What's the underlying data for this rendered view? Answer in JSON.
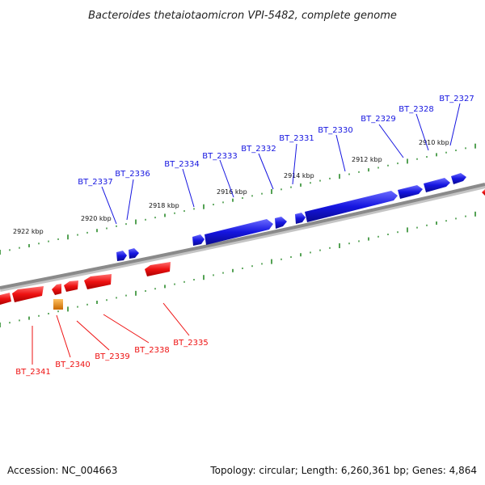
{
  "title": "Bacteroides thetaiotaomicron VPI-5482, complete genome",
  "accession": "Accession: NC_004663",
  "summary": "Topology: circular; Length: 6,260,361 bp; Genes: 4,864",
  "colors": {
    "forward_gene": "#1515e0",
    "reverse_gene": "#ee1111",
    "other_gene": "#e8860a",
    "backbone": "#888888",
    "ticks": "#2a8a2a"
  },
  "scale_labels": [
    "2922 kbp",
    "2920 kbp",
    "2918 kbp",
    "2916 kbp",
    "2914 kbp",
    "2912 kbp",
    "2910 kbp"
  ],
  "forward_genes": [
    "BT_2337",
    "BT_2336",
    "BT_2334",
    "BT_2333",
    "BT_2332",
    "BT_2331",
    "BT_2330",
    "BT_2329",
    "BT_2328",
    "BT_2327"
  ],
  "reverse_genes": [
    "BT_2341",
    "BT_2340",
    "BT_2339",
    "BT_2338",
    "BT_2335"
  ]
}
